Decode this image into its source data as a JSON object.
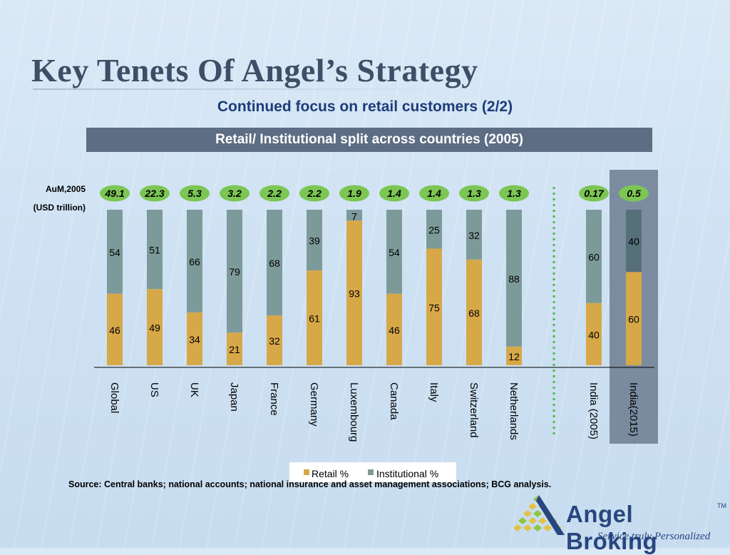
{
  "slide": {
    "title": "Key Tenets Of Angel’s Strategy",
    "subtitle": "Continued focus on retail customers (2/2)",
    "banner": "Retail/ Institutional split across countries (2005)",
    "aum_label_line1": "AuM,2005",
    "aum_label_line2": "(USD trillion)",
    "source": "Source: Central banks; national accounts; national insurance and asset  management associations; BCG analysis."
  },
  "logo": {
    "name": "Angel Broking",
    "tm": "TM",
    "tagline": "Service truly Personalized"
  },
  "colors": {
    "retail": "#d7a848",
    "institutional": "#7d9a9a",
    "institutional_highlight": "#56707a",
    "badge_fill": "#7cc654",
    "divider": "#52b848",
    "highlight_column": "#6c7c91"
  },
  "chart_data": {
    "type": "bar",
    "stacked": true,
    "percent_stacked": true,
    "categories": [
      "Global",
      "US",
      "UK",
      "Japan",
      "France",
      "Germany",
      "Luxembourg",
      "Canada",
      "Italy",
      "Switzerland",
      "Netherlands",
      "India (2005)",
      "India(2015)"
    ],
    "series": [
      {
        "name": "Retail %",
        "values": [
          46,
          49,
          34,
          21,
          32,
          61,
          93,
          46,
          75,
          68,
          12,
          40,
          60
        ]
      },
      {
        "name": "Institutional %",
        "values": [
          54,
          51,
          66,
          79,
          68,
          39,
          7,
          54,
          25,
          32,
          88,
          60,
          40
        ]
      }
    ],
    "aum_usd_trillion": [
      "49.1",
      "22.3",
      "5.3",
      "3.2",
      "2.2",
      "2.2",
      "1.9",
      "1.4",
      "1.4",
      "1.3",
      "1.3",
      "0.17",
      "0.5"
    ],
    "ylim": [
      0,
      100
    ],
    "legend_position": "bottom-center",
    "highlighted_category": "India(2015)",
    "divider_after_category": "Netherlands",
    "grid": false
  }
}
